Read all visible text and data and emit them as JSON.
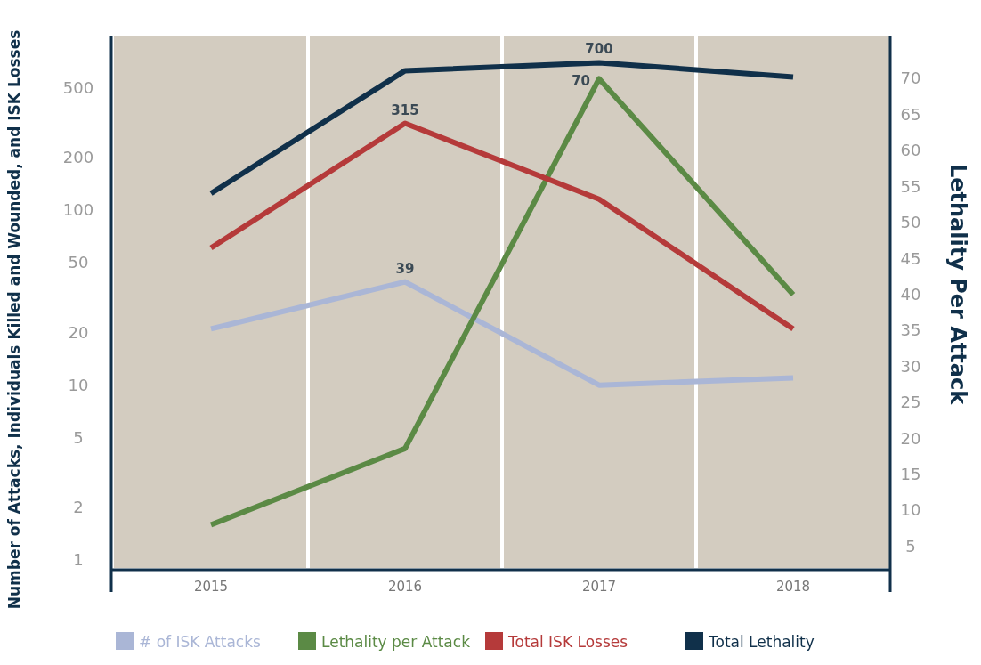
{
  "chart_data": {
    "type": "line",
    "ylabel": "Number of Attacks, Individuals Killed and Wounded, and ISK Losses",
    "y2label": "Lethality Per Attack",
    "categories": [
      "2015",
      "2016",
      "2017",
      "2018"
    ],
    "series": [
      {
        "name": "# of ISK Attacks",
        "color": "#aab6d6",
        "values": [
          21,
          39,
          10,
          11
        ],
        "value_labels": [
          null,
          "39",
          null,
          null
        ]
      },
      {
        "name": "Lethality per Attack",
        "color": "#5b8a45",
        "values": [
          8,
          18.6,
          70,
          40
        ],
        "axis": "y2",
        "value_labels": [
          null,
          null,
          "70",
          null
        ]
      },
      {
        "name": "Total ISK Losses",
        "color": "#b53a3a",
        "values": [
          61,
          315,
          116,
          21
        ],
        "value_labels": [
          null,
          "315",
          null,
          null
        ]
      },
      {
        "name": "Total Lethality",
        "color": "#10304a",
        "values": [
          125,
          630,
          700,
          580
        ],
        "value_labels": [
          null,
          null,
          "700",
          null
        ]
      }
    ],
    "log": "y",
    "ylim": [
      0.9,
      1000
    ],
    "yticks": [
      1,
      2,
      5,
      10,
      20,
      50,
      100,
      200,
      500
    ],
    "y2lim": [
      2,
      76
    ],
    "y2ticks": [
      5,
      10,
      15,
      20,
      25,
      30,
      35,
      40,
      45,
      50,
      55,
      60,
      65,
      70
    ],
    "grid": "x",
    "legend": "bottom",
    "marker": "none",
    "line_style": "solid"
  }
}
